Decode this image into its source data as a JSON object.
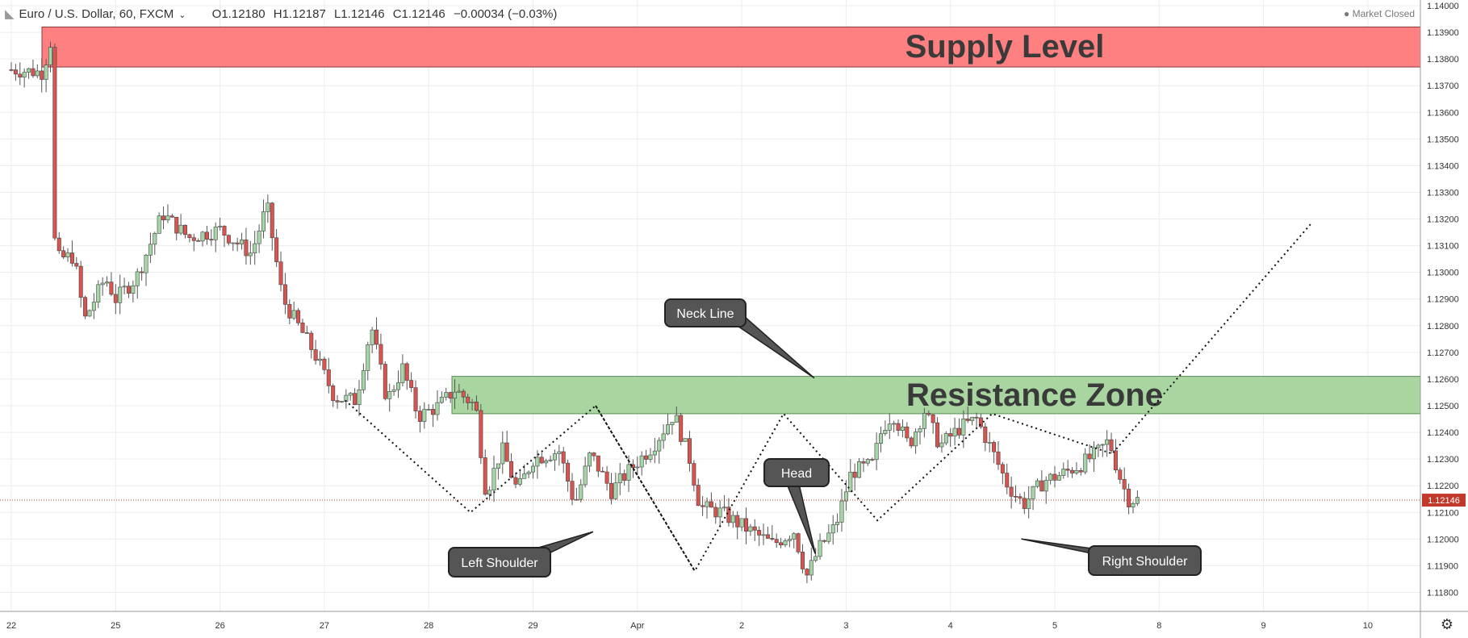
{
  "header": {
    "symbol": "Euro / U.S. Dollar, 60, FXCM",
    "open": "O1.12180",
    "high": "H1.12187",
    "low": "L1.12146",
    "close": "C1.12146",
    "change": "−0.00034 (−0.03%)"
  },
  "status": "Market Closed",
  "current_price_label": "1.12146",
  "annotations": {
    "supply_label": "Supply Level",
    "resistance_label": "Resistance Zone",
    "neck_line": "Neck Line",
    "head": "Head",
    "left_shoulder": "Left Shoulder",
    "right_shoulder": "Right Shoulder"
  },
  "colors": {
    "up_candle": "#a5d6a7",
    "down_candle": "#d9534f",
    "supply_zone": "#ff8080",
    "resistance_zone": "#a8d5a0",
    "callout_bg": "#555555",
    "price_line": "#c0392b"
  },
  "chart_data": {
    "type": "candlestick",
    "symbol": "EUR/USD",
    "timeframe": "60",
    "y_axis_ticks": [
      1.118,
      1.119,
      1.12,
      1.121,
      1.122,
      1.123,
      1.124,
      1.125,
      1.126,
      1.127,
      1.128,
      1.129,
      1.13,
      1.131,
      1.132,
      1.133,
      1.134,
      1.135,
      1.136,
      1.137,
      1.138,
      1.139,
      1.14
    ],
    "x_axis_labels": [
      "22",
      "25",
      "26",
      "27",
      "28",
      "29",
      "Apr",
      "2",
      "3",
      "4",
      "5",
      "8",
      "9",
      "10"
    ],
    "last_price": 1.12146,
    "zones": [
      {
        "name": "Supply Level",
        "low": 1.1377,
        "high": 1.1392
      },
      {
        "name": "Resistance Zone",
        "low": 1.1247,
        "high": 1.1261
      }
    ],
    "price_path": [
      {
        "day": 0.0,
        "price": 1.1376
      },
      {
        "day": 0.3,
        "price": 1.1375
      },
      {
        "day": 0.38,
        "price": 1.1387
      },
      {
        "day": 0.42,
        "price": 1.1305
      },
      {
        "day": 0.6,
        "price": 1.1306
      },
      {
        "day": 0.7,
        "price": 1.1282
      },
      {
        "day": 0.9,
        "price": 1.1298
      },
      {
        "day": 1.0,
        "price": 1.129
      },
      {
        "day": 1.2,
        "price": 1.1298
      },
      {
        "day": 1.45,
        "price": 1.1322
      },
      {
        "day": 1.7,
        "price": 1.1313
      },
      {
        "day": 2.0,
        "price": 1.1316
      },
      {
        "day": 2.3,
        "price": 1.1307
      },
      {
        "day": 2.45,
        "price": 1.1325
      },
      {
        "day": 2.6,
        "price": 1.129
      },
      {
        "day": 2.9,
        "price": 1.127
      },
      {
        "day": 3.1,
        "price": 1.1253
      },
      {
        "day": 3.3,
        "price": 1.1252
      },
      {
        "day": 3.45,
        "price": 1.128
      },
      {
        "day": 3.6,
        "price": 1.1252
      },
      {
        "day": 3.75,
        "price": 1.1264
      },
      {
        "day": 3.9,
        "price": 1.1246
      },
      {
        "day": 4.1,
        "price": 1.125
      },
      {
        "day": 4.25,
        "price": 1.1256
      },
      {
        "day": 4.45,
        "price": 1.125
      },
      {
        "day": 4.55,
        "price": 1.1217
      },
      {
        "day": 4.7,
        "price": 1.1234
      },
      {
        "day": 4.85,
        "price": 1.1218
      },
      {
        "day": 5.0,
        "price": 1.123
      },
      {
        "day": 5.25,
        "price": 1.1233
      },
      {
        "day": 5.4,
        "price": 1.1213
      },
      {
        "day": 5.55,
        "price": 1.1232
      },
      {
        "day": 5.75,
        "price": 1.1218
      },
      {
        "day": 5.95,
        "price": 1.1227
      },
      {
        "day": 6.15,
        "price": 1.1235
      },
      {
        "day": 6.35,
        "price": 1.1247
      },
      {
        "day": 6.5,
        "price": 1.123
      },
      {
        "day": 6.6,
        "price": 1.1212
      },
      {
        "day": 6.8,
        "price": 1.121
      },
      {
        "day": 7.0,
        "price": 1.1205
      },
      {
        "day": 7.3,
        "price": 1.1198
      },
      {
        "day": 7.5,
        "price": 1.1203
      },
      {
        "day": 7.62,
        "price": 1.1186
      },
      {
        "day": 7.75,
        "price": 1.1197
      },
      {
        "day": 7.9,
        "price": 1.1205
      },
      {
        "day": 8.05,
        "price": 1.1225
      },
      {
        "day": 8.25,
        "price": 1.1228
      },
      {
        "day": 8.35,
        "price": 1.1242
      },
      {
        "day": 8.45,
        "price": 1.1247
      },
      {
        "day": 8.6,
        "price": 1.1235
      },
      {
        "day": 8.75,
        "price": 1.1248
      },
      {
        "day": 8.9,
        "price": 1.1235
      },
      {
        "day": 9.1,
        "price": 1.1242
      },
      {
        "day": 9.25,
        "price": 1.1245
      },
      {
        "day": 9.4,
        "price": 1.1233
      },
      {
        "day": 9.55,
        "price": 1.122
      },
      {
        "day": 9.7,
        "price": 1.1213
      },
      {
        "day": 9.9,
        "price": 1.1222
      },
      {
        "day": 10.05,
        "price": 1.1224
      },
      {
        "day": 10.25,
        "price": 1.1228
      },
      {
        "day": 10.4,
        "price": 1.1232
      },
      {
        "day": 10.52,
        "price": 1.1237
      },
      {
        "day": 10.6,
        "price": 1.1226
      },
      {
        "day": 10.7,
        "price": 1.1215
      },
      {
        "day": 10.82,
        "price": 1.12146
      }
    ],
    "pattern_lines": [
      [
        {
          "day": 3.2,
          "price": 1.1252
        },
        {
          "day": 4.4,
          "price": 1.121
        },
        {
          "day": 5.6,
          "price": 1.125
        },
        {
          "day": 6.55,
          "price": 1.1188
        },
        {
          "day": 7.4,
          "price": 1.1247
        },
        {
          "day": 8.3,
          "price": 1.1207
        },
        {
          "day": 9.4,
          "price": 1.1247
        },
        {
          "day": 10.55,
          "price": 1.1232
        },
        {
          "day": 12.45,
          "price": 1.1318
        }
      ],
      [
        {
          "day": 5.6,
          "price": 1.125
        },
        {
          "day": 6.55,
          "price": 1.1188
        }
      ]
    ],
    "pattern_points": [
      {
        "label": "Left Shoulder",
        "day": 4.4,
        "price": 1.121
      },
      {
        "label": "Head",
        "day": 7.62,
        "price": 1.1183
      },
      {
        "label": "Right Shoulder",
        "day": 9.4,
        "price": 1.1207
      },
      {
        "label": "Neck Line",
        "day": 6.55,
        "price": 1.1261
      }
    ]
  }
}
